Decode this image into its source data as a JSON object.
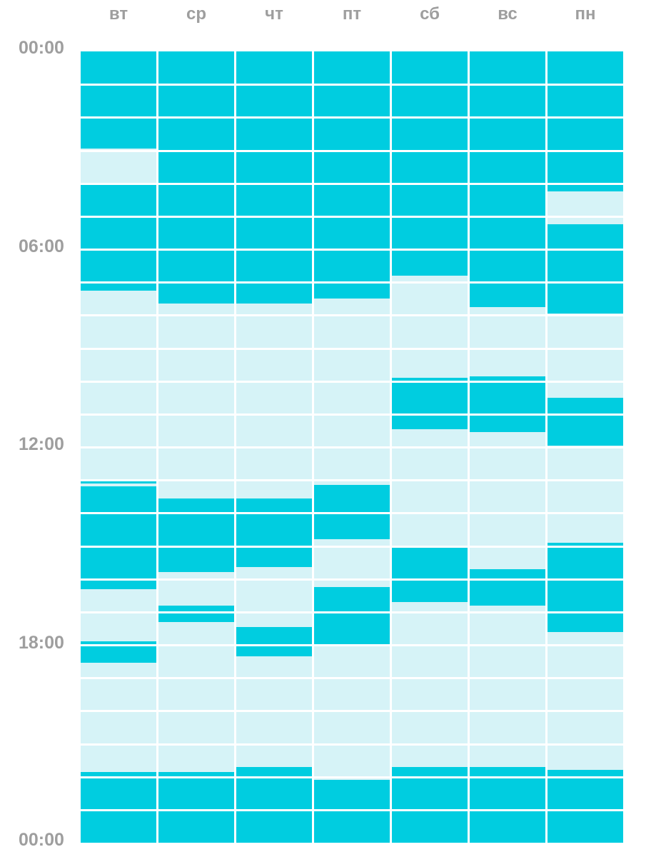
{
  "colors": {
    "asleep": "#00cde0",
    "awake": "#d6f3f7",
    "label": "#9e9e9e"
  },
  "time_axis": {
    "labels": [
      "00:00",
      "06:00",
      "12:00",
      "18:00",
      "00:00"
    ]
  },
  "days": [
    {
      "label": "вт",
      "sleep_hours": [
        [
          0,
          2.95
        ],
        [
          4.0,
          7.25
        ],
        [
          13.05,
          13.1
        ],
        [
          13.2,
          16.3
        ],
        [
          17.9,
          18.55
        ],
        [
          21.85,
          24
        ]
      ]
    },
    {
      "label": "ср",
      "sleep_hours": [
        [
          0,
          7.65
        ],
        [
          13.55,
          15.8
        ],
        [
          16.8,
          17.3
        ],
        [
          21.85,
          24
        ]
      ]
    },
    {
      "label": "чт",
      "sleep_hours": [
        [
          0,
          7.65
        ],
        [
          13.55,
          15.65
        ],
        [
          18.35,
          17.45
        ],
        [
          21.7,
          24
        ]
      ]
    },
    {
      "label": "пт",
      "sleep_hours": [
        [
          0,
          7.5
        ],
        [
          13.15,
          14.8
        ],
        [
          16.25,
          18.05
        ],
        [
          22.1,
          24
        ]
      ]
    },
    {
      "label": "сб",
      "sleep_hours": [
        [
          0,
          6.8
        ],
        [
          9.9,
          11.45
        ],
        [
          15.0,
          16.7
        ],
        [
          21.7,
          24
        ]
      ]
    },
    {
      "label": "вс",
      "sleep_hours": [
        [
          0,
          7.75
        ],
        [
          9.85,
          11.55
        ],
        [
          15.7,
          16.8
        ],
        [
          21.7,
          24
        ]
      ]
    },
    {
      "label": "пн",
      "sleep_hours": [
        [
          0,
          4.25
        ],
        [
          5.25,
          7.95
        ],
        [
          10.5,
          11.95
        ],
        [
          14.9,
          17.6
        ],
        [
          21.8,
          24
        ]
      ]
    }
  ]
}
